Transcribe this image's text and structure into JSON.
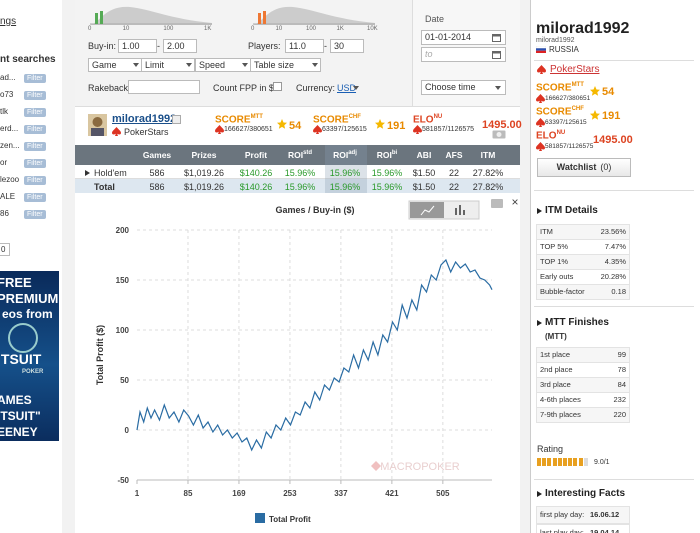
{
  "sidebar_left": {
    "settings_fragment": "ngs",
    "searches_title": "nt searches",
    "searches": [
      {
        "name": "ad...",
        "button": "Filter"
      },
      {
        "name": "o73",
        "button": "Filter"
      },
      {
        "name": "tlk",
        "button": "Filter"
      },
      {
        "name": "erd...",
        "button": "Filter"
      },
      {
        "name": "zen...",
        "button": "Filter"
      },
      {
        "name": "or",
        "button": "Filter"
      },
      {
        "name": "lezoo",
        "button": "Filter"
      },
      {
        "name": "ALE",
        "button": "Filter"
      },
      {
        "name": "86",
        "button": "Filter"
      }
    ],
    "page_box": "0",
    "ad": [
      "FREE",
      "PREMIUM",
      "eos from",
      "ITSUIT",
      "POKER",
      "AMES",
      "ITSUIT\"",
      "EENEY"
    ]
  },
  "filters": {
    "slider1_ticks": [
      "0",
      "10",
      "100",
      "1K"
    ],
    "slider2_ticks": [
      "0",
      "10",
      "100",
      "1K",
      "10K"
    ],
    "buyin_label": "Buy-in:",
    "buyin_from": "1.00",
    "buyin_sep": "-",
    "buyin_to": "2.00",
    "players_label": "Players:",
    "players_from": "11.0",
    "players_sep": "-",
    "players_to": "30",
    "date_label": "Date",
    "date_from": "01-01-2014",
    "date_to": "to",
    "selects": [
      "Game",
      "Limit",
      "Speed",
      "Table size"
    ],
    "rakeback_label": "Rakeback:",
    "fpp_label": "Count FPP in $",
    "currency_label": "Currency:",
    "currency": "USD",
    "time_select": "Choose time"
  },
  "player": {
    "name": "milorad1992",
    "site": "PokerStars",
    "scores": [
      {
        "label": "SCORE",
        "sup": "MTT",
        "rank": "166627/380651",
        "value": "54"
      },
      {
        "label": "SCORE",
        "sup": "CHF",
        "rank": "63397/125615",
        "value": "191"
      },
      {
        "label": "ELO",
        "sup": "NU",
        "rank": "581857/1126575",
        "value": "1495.00"
      }
    ]
  },
  "table": {
    "headers": [
      {
        "text": "Games"
      },
      {
        "text": "Prizes"
      },
      {
        "text": "Profit"
      },
      {
        "text": "ROI",
        "sup": "std"
      },
      {
        "text": "ROI",
        "sup": "adj"
      },
      {
        "text": "ROI",
        "sup": "bi"
      },
      {
        "text": "ABI"
      },
      {
        "text": "AFS"
      },
      {
        "text": "ITM"
      }
    ],
    "rows": [
      [
        "Hold'em",
        "586",
        "$1,019.26",
        "$140.26",
        "15.96%",
        "15.96%",
        "15.96%",
        "$1.50",
        "22",
        "27.82%"
      ],
      [
        "Total",
        "586",
        "$1,019.26",
        "$140.26",
        "15.96%",
        "15.96%",
        "15.96%",
        "$1.50",
        "22",
        "27.82%"
      ]
    ]
  },
  "chart_data": {
    "type": "line",
    "title": "Games / Buy-in ($)",
    "y_label": "Total Profit ($)",
    "watermark": "MACROPOKER",
    "close": "×",
    "x": [
      1,
      6,
      12,
      18,
      24,
      30,
      38,
      46,
      54,
      62,
      70,
      78,
      86,
      94,
      102,
      110,
      118,
      126,
      134,
      142,
      150,
      158,
      166,
      174,
      182,
      190,
      198,
      206,
      214,
      222,
      230,
      238,
      246,
      254,
      262,
      270,
      278,
      286,
      294,
      302,
      310,
      318,
      326,
      334,
      342,
      350,
      358,
      366,
      374,
      382,
      390,
      398,
      406,
      414,
      422,
      430,
      438,
      446,
      454,
      462,
      470,
      478,
      486,
      494,
      502,
      510,
      518,
      526,
      534,
      542,
      550,
      558,
      566,
      574,
      582,
      586
    ],
    "series": [
      {
        "name": "Total Profit",
        "color": "#2a6ca3",
        "values": [
          0,
          18,
          8,
          22,
          12,
          20,
          10,
          25,
          12,
          18,
          8,
          20,
          14,
          5,
          15,
          2,
          8,
          -2,
          5,
          -5,
          0,
          -8,
          -3,
          -12,
          -8,
          -20,
          -10,
          -18,
          -2,
          -8,
          5,
          0,
          12,
          5,
          18,
          15,
          28,
          22,
          38,
          30,
          45,
          40,
          52,
          48,
          62,
          58,
          75,
          62,
          80,
          70,
          88,
          75,
          95,
          88,
          108,
          100,
          125,
          112,
          130,
          120,
          145,
          138,
          155,
          150,
          165,
          170,
          158,
          168,
          162,
          166,
          158,
          160,
          152,
          150,
          145,
          140.26
        ]
      }
    ],
    "xlim": [
      1,
      586
    ],
    "xticks": [
      1,
      85,
      169,
      253,
      337,
      421,
      505
    ],
    "ylim": [
      -50,
      200
    ],
    "yticks": [
      -50,
      0,
      50,
      100,
      150,
      200
    ],
    "grid": true
  },
  "profile": {
    "name": "milorad1992",
    "nick": "milorad1992",
    "country": "RUSSIA",
    "site": "PokerStars",
    "watchlist": "Watchlist",
    "watch_count": "(0)",
    "itm_title": "ITM Details",
    "itm": [
      [
        "ITM",
        "23.56%"
      ],
      [
        "TOP 5%",
        "7.47%"
      ],
      [
        "TOP 1%",
        "4.35%"
      ],
      [
        "Early outs",
        "20.28%"
      ],
      [
        "Bubble-factor",
        "0.18"
      ]
    ],
    "mtt_title": "MTT Finishes",
    "mtt_sub": "(MTT)",
    "mtt": [
      [
        "1st place",
        "99"
      ],
      [
        "2nd place",
        "78"
      ],
      [
        "3rd place",
        "84"
      ],
      [
        "4-6th places",
        "232"
      ],
      [
        "7-9th places",
        "220"
      ]
    ],
    "rating_label": "Rating",
    "rating": "9.0/1",
    "facts_title": "Interesting Facts",
    "facts": [
      [
        "first play day:",
        "16.06.12"
      ],
      [
        "last play day:",
        "19.04.14"
      ]
    ]
  }
}
